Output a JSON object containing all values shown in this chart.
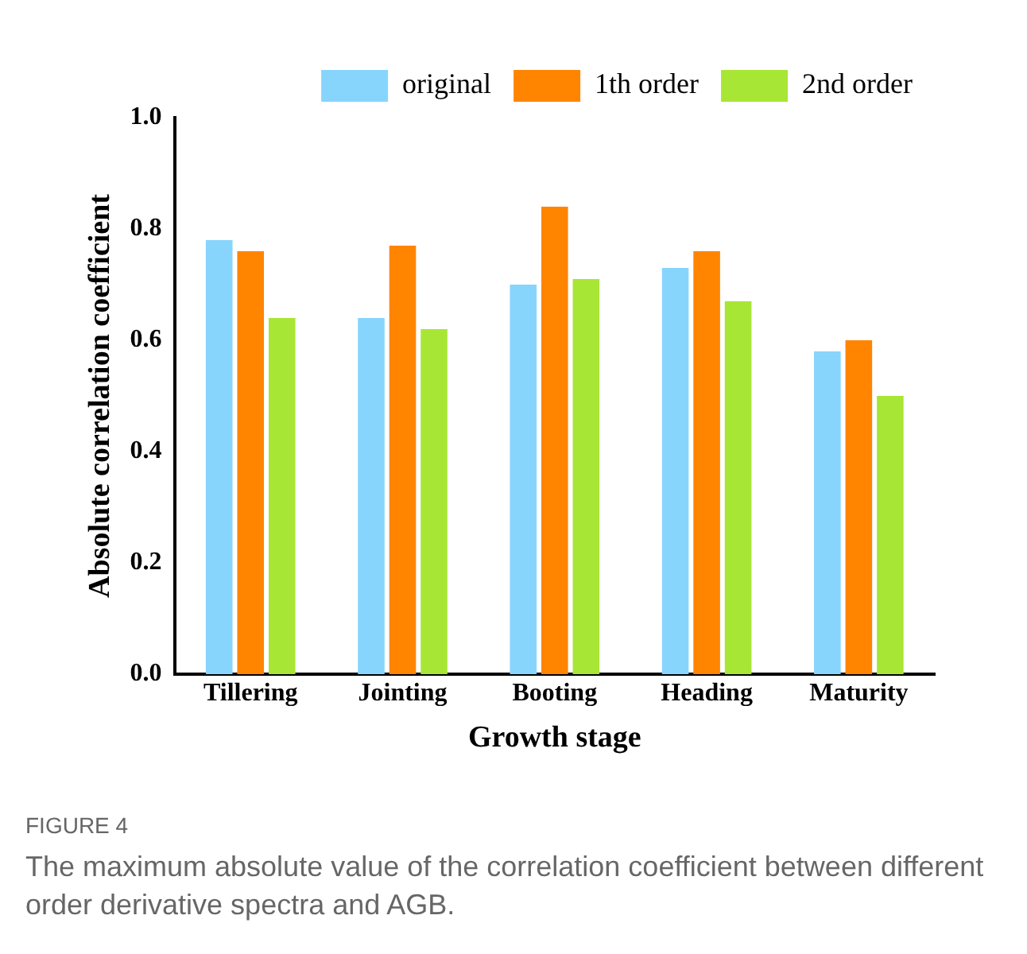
{
  "chart_data": {
    "type": "bar",
    "xlabel": "Growth stage",
    "ylabel": "Absolute correlation coefficient",
    "categories": [
      "Tillering",
      "Jointing",
      "Booting",
      "Heading",
      "Maturity"
    ],
    "series": [
      {
        "name": "original",
        "color": "#87d5fd",
        "values": [
          0.78,
          0.64,
          0.7,
          0.73,
          0.58
        ]
      },
      {
        "name": "1th order",
        "color": "#ff8500",
        "values": [
          0.76,
          0.77,
          0.84,
          0.76,
          0.6
        ]
      },
      {
        "name": "2nd order",
        "color": "#a8e635",
        "values": [
          0.64,
          0.62,
          0.71,
          0.67,
          0.5
        ]
      }
    ],
    "ylim": [
      0,
      1
    ],
    "yticks": [
      {
        "value": 0,
        "label": "0.0"
      },
      {
        "value": 0.2,
        "label": "0.2"
      },
      {
        "value": 0.4,
        "label": "0.4"
      },
      {
        "value": 0.6,
        "label": "0.6"
      },
      {
        "value": 0.8,
        "label": "0.8"
      },
      {
        "value": 1,
        "label": "1.0"
      }
    ],
    "grid": false,
    "legend": "top",
    "annotations": [
      "FIGURE 4",
      "The maximum absolute value of the correlation coefficient between different order derivative spectra and AGB."
    ]
  }
}
